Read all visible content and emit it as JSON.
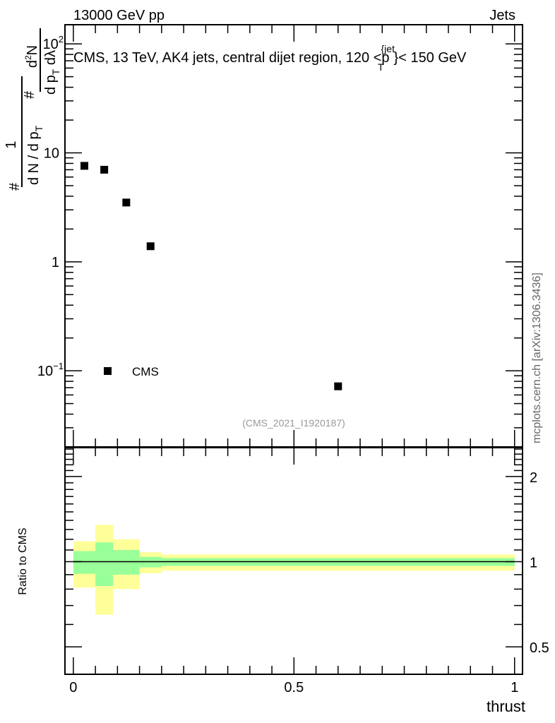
{
  "header": {
    "left": "13000 GeV pp",
    "right": "Jets"
  },
  "side_label": "mcplots.cern.ch [arXiv:1306.3436]",
  "chart_data": [
    {
      "type": "scatter",
      "title": "CMS, 13 TeV, AK4 jets, central dijet region, 120 <p",
      "title_sup": "{jet",
      "title_sub": "T",
      "title_end": "}< 150 GeV",
      "ylabel_parts": {
        "hash1": "#",
        "num1": "1",
        "den1": "d N / d p",
        "den1_sub": "T",
        "hash2": "#",
        "num2": "d",
        "num2_sup": "2",
        "num2_end": "N",
        "den2": "d p",
        "den2_sub": "T",
        "den2_end": " dλ"
      },
      "yscale": "log",
      "ylim": [
        0.02,
        150
      ],
      "xlim": [
        -0.019,
        1.018
      ],
      "ytick_labels": [
        {
          "v": 100,
          "base": "10",
          "exp": "2"
        },
        {
          "v": 10,
          "base": "10",
          "exp": ""
        },
        {
          "v": 1,
          "base": "1",
          "exp": ""
        },
        {
          "v": 0.1,
          "base": "10",
          "exp": "−1"
        }
      ],
      "series": [
        {
          "name": "CMS",
          "marker": "square",
          "color": "#000000",
          "x": [
            0.025,
            0.07,
            0.12,
            0.175,
            0.6
          ],
          "y": [
            7.6,
            7.0,
            3.5,
            1.39,
            0.072
          ]
        }
      ],
      "legend": {
        "label": "CMS",
        "placement": "bottom-left"
      },
      "watermark": "(CMS_2021_I1920187)"
    },
    {
      "type": "area",
      "ylabel": "Ratio to CMS",
      "xlabel": "thrust",
      "yscale": "log",
      "ylim": [
        0.4,
        2.53
      ],
      "xlim": [
        -0.019,
        1.018
      ],
      "xtick_labels": [
        {
          "v": 0,
          "t": "0"
        },
        {
          "v": 0.5,
          "t": "0.5"
        },
        {
          "v": 1,
          "t": "1"
        }
      ],
      "ytick_labels": [
        {
          "v": 2,
          "t": "2"
        },
        {
          "v": 1,
          "t": "1"
        },
        {
          "v": 0.5,
          "t": "0.5"
        }
      ],
      "bins": [
        [
          0,
          0.05
        ],
        [
          0.05,
          0.09
        ],
        [
          0.09,
          0.15
        ],
        [
          0.15,
          0.2
        ],
        [
          0.2,
          1.0
        ]
      ],
      "band_outer": {
        "color": "#ffff99",
        "lo": [
          0.81,
          0.65,
          0.8,
          0.91,
          0.93
        ],
        "hi": [
          1.18,
          1.35,
          1.2,
          1.08,
          1.06
        ]
      },
      "band_inner": {
        "color": "#99ff99",
        "lo": [
          0.906,
          0.82,
          0.9,
          0.955,
          0.966
        ],
        "hi": [
          1.09,
          1.17,
          1.1,
          1.04,
          1.03
        ]
      },
      "reference": 1
    }
  ]
}
